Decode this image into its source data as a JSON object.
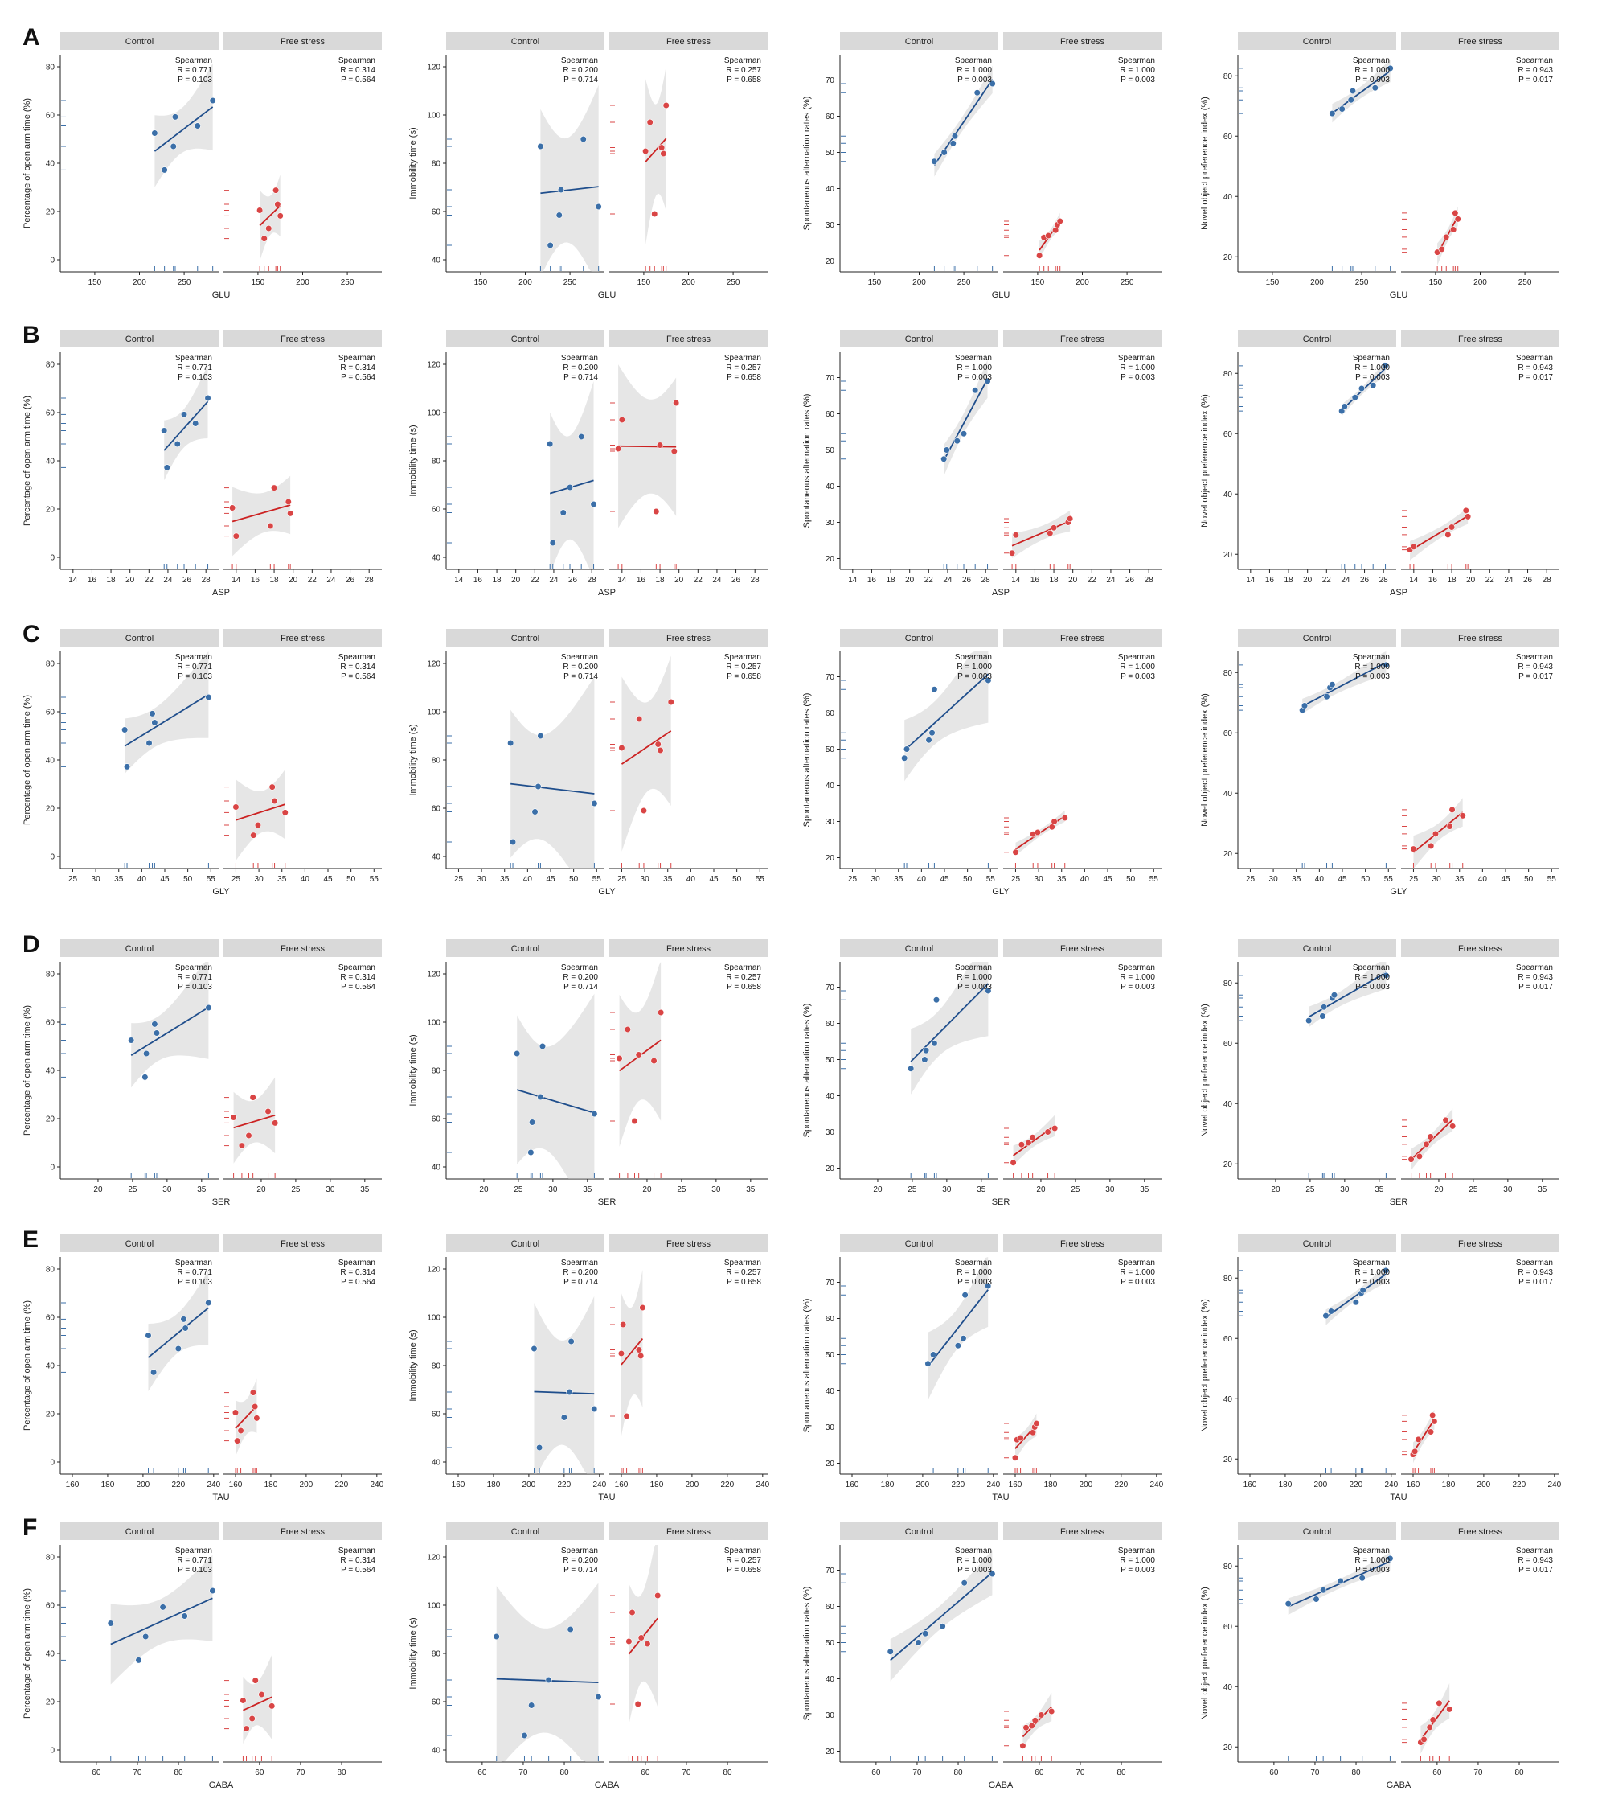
{
  "row_labels": [
    "A",
    "B",
    "C",
    "D",
    "E",
    "F"
  ],
  "facet_labels": [
    "Control",
    "Free stress"
  ],
  "stat_header": "Spearman",
  "colors": {
    "control": "#3b6fa8",
    "stress": "#d94545",
    "control_line": "#1f4e8c",
    "stress_line": "#cc2222",
    "band": "#c8c8c8",
    "strip": "#d9d9d9"
  },
  "behaviors": [
    {
      "ylabel": "Percentage of open arm time (%)",
      "ylim": [
        -5,
        85
      ],
      "yticks": [
        0,
        20,
        40,
        60,
        80
      ],
      "stats": {
        "control": {
          "R": "R = 0.771",
          "P": "P = 0.103"
        },
        "stress": {
          "R": "R = 0.314",
          "P": "P = 0.564"
        }
      }
    },
    {
      "ylabel": "Immobility time (s)",
      "ylim": [
        35,
        125
      ],
      "yticks": [
        40,
        60,
        80,
        100,
        120
      ],
      "stats": {
        "control": {
          "R": "R = 0.200",
          "P": "P = 0.714"
        },
        "stress": {
          "R": "R = 0.257",
          "P": "P = 0.658"
        }
      }
    },
    {
      "ylabel": "Spontaneous alternation rates (%)",
      "ylim": [
        17,
        77
      ],
      "yticks": [
        20,
        30,
        40,
        50,
        60,
        70
      ],
      "stats": {
        "control": {
          "R": "R = 1.000",
          "P": "P = 0.003"
        },
        "stress": {
          "R": "R = 1.000",
          "P": "P = 0.003"
        }
      }
    },
    {
      "ylabel": "Novel object preference index (%)",
      "ylim": [
        15,
        87
      ],
      "yticks": [
        20,
        40,
        60,
        80
      ],
      "stats": {
        "control": {
          "R": "R = 1.000",
          "P": "P = 0.003"
        },
        "stress": {
          "R": "R = 0.943",
          "P": "P = 0.017"
        }
      }
    }
  ],
  "chart_data": [
    {
      "type": "scatter",
      "panel": "A",
      "xlabel": "GLU",
      "xlim": [
        115,
        285
      ],
      "xticks": [
        150,
        200,
        250
      ],
      "control_x": [
        217,
        228,
        238,
        240,
        265,
        282
      ],
      "stress_x": [
        152,
        157,
        162,
        170,
        172,
        175
      ]
    },
    {
      "type": "scatter",
      "panel": "B",
      "xlabel": "ASP",
      "xlim": [
        13,
        29
      ],
      "xticks": [
        14,
        16,
        18,
        20,
        22,
        24,
        26,
        28
      ],
      "control_x": [
        23.6,
        23.9,
        25.0,
        25.7,
        26.9,
        28.2
      ],
      "stress_x": [
        13.6,
        14.0,
        17.6,
        18.0,
        19.5,
        19.7
      ]
    },
    {
      "type": "scatter",
      "panel": "C",
      "xlabel": "GLY",
      "xlim": [
        23,
        56
      ],
      "xticks": [
        25,
        30,
        35,
        40,
        45,
        50,
        55
      ],
      "control_x": [
        36.3,
        36.8,
        41.6,
        42.3,
        42.8,
        54.5
      ],
      "stress_x": [
        25.0,
        28.8,
        29.8,
        32.9,
        33.4,
        35.7
      ]
    },
    {
      "type": "scatter",
      "panel": "D",
      "xlabel": "SER",
      "xlim": [
        15,
        37
      ],
      "xticks": [
        20,
        25,
        30,
        35
      ],
      "control_x": [
        24.8,
        26.8,
        27.0,
        28.2,
        28.5,
        36.0
      ],
      "stress_x": [
        16.0,
        17.2,
        18.2,
        18.8,
        21.0,
        22.0
      ]
    },
    {
      "type": "scatter",
      "panel": "E",
      "xlabel": "TAU",
      "xlim": [
        155,
        241
      ],
      "xticks": [
        160,
        180,
        200,
        220,
        240
      ],
      "control_x": [
        203,
        206,
        220,
        223,
        224,
        237
      ],
      "stress_x": [
        160,
        161,
        163,
        170,
        171,
        172
      ]
    },
    {
      "type": "scatter",
      "panel": "F",
      "xlabel": "GABA",
      "xlim": [
        52,
        89
      ],
      "xticks": [
        60,
        70,
        80
      ],
      "control_x": [
        63.5,
        70.3,
        72.0,
        76.2,
        81.5,
        88.3
      ],
      "stress_x": [
        56.0,
        56.8,
        58.2,
        59.0,
        60.5,
        63.0
      ]
    }
  ],
  "y_values": {
    "control": [
      [
        52.5,
        37.2,
        47.0,
        59.2,
        55.5,
        66.0
      ],
      [
        87.0,
        46.0,
        58.5,
        69.0,
        90.0,
        62.0
      ],
      [
        47.5,
        50.0,
        52.5,
        54.5,
        66.5,
        69.0
      ],
      [
        67.5,
        69.0,
        72.0,
        75.0,
        76.0,
        82.5
      ]
    ],
    "stress": [
      [
        20.5,
        8.8,
        13.0,
        28.8,
        23.0,
        18.2
      ],
      [
        85.0,
        97.0,
        59.0,
        86.5,
        84.0,
        104.0
      ],
      [
        21.5,
        26.5,
        27.0,
        28.5,
        30.0,
        31.0
      ],
      [
        21.5,
        22.5,
        26.5,
        29.0,
        34.5,
        32.5
      ]
    ]
  }
}
